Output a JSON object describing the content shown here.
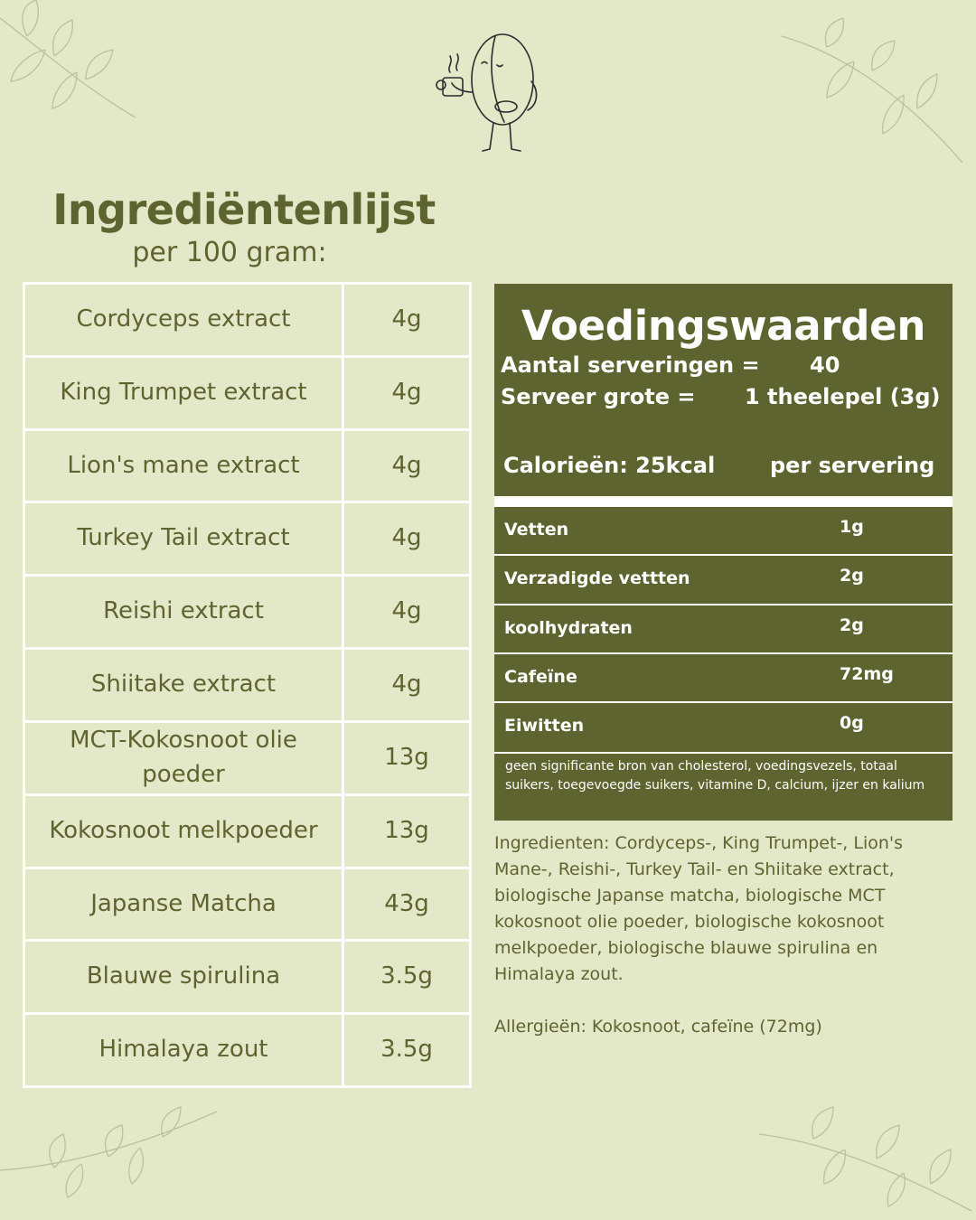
{
  "ingredients": {
    "title": "Ingrediëntenlijst",
    "subtitle": "per 100 gram:",
    "rows": [
      {
        "name": "Cordyceps extract",
        "amount": "4g"
      },
      {
        "name": "King Trumpet extract",
        "amount": "4g"
      },
      {
        "name": "Lion's mane extract",
        "amount": "4g"
      },
      {
        "name": "Turkey Tail extract",
        "amount": "4g"
      },
      {
        "name": "Reishi extract",
        "amount": "4g"
      },
      {
        "name": "Shiitake extract",
        "amount": "4g"
      },
      {
        "name": "MCT-Kokosnoot olie poeder",
        "amount": "13g"
      },
      {
        "name": "Kokosnoot melkpoeder",
        "amount": "13g"
      },
      {
        "name": "Japanse Matcha",
        "amount": "43g"
      },
      {
        "name": "Blauwe spirulina",
        "amount": "3.5g"
      },
      {
        "name": "Himalaya zout",
        "amount": "3.5g"
      }
    ]
  },
  "nutrition": {
    "title": "Voedingswaarden",
    "servings_label": "Aantal serveringen =",
    "servings_value": "40",
    "serving_size_label": "Serveer grote =",
    "serving_size_value": "1 theelepel (3g)",
    "calories_label": "Calorieën: 25kcal",
    "per_label": "per servering",
    "rows": [
      {
        "label": "Vetten",
        "value": "1g"
      },
      {
        "label": "Verzadigde vettten",
        "value": "2g"
      },
      {
        "label": "koolhydraten",
        "value": "2g"
      },
      {
        "label": "Cafeïne",
        "value": "72mg"
      },
      {
        "label": "Eiwitten",
        "value": "0g"
      }
    ],
    "footnote": "geen significante bron van cholesterol, voedingsvezels, totaal suikers, toegevoegde suikers, vitamine D, calcium, ijzer en kalium"
  },
  "ingredients_text": "Ingredienten: Cordyceps-, King Trumpet-, Lion's Mane-, Reishi-, Turkey Tail- en Shiitake extract, biologische Japanse matcha, biologische MCT kokosnoot olie poeder, biologische kokosnoot melkpoeder, biologische blauwe spirulina en Himalaya zout.",
  "allergens_text": "Allergieën: Kokosnoot, cafeïne (72mg)",
  "colors": {
    "background": "#e2e8c8",
    "accent": "#5e6430",
    "leaf": "#b9c39a"
  },
  "icons": [
    "leaf-branch-icon",
    "coffee-bean-mascot-icon"
  ]
}
